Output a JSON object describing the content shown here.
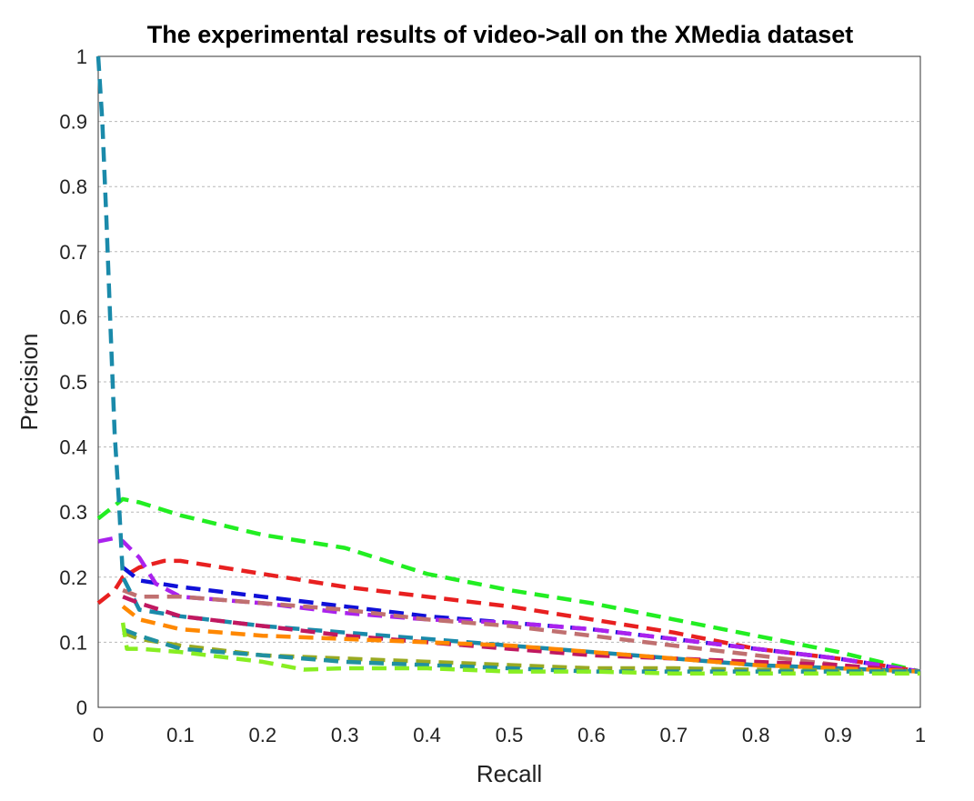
{
  "chart_data": {
    "type": "line",
    "title": "The experimental results of video->all on the XMedia dataset",
    "xlabel": "Recall",
    "ylabel": "Precision",
    "xlim": [
      0,
      1
    ],
    "ylim": [
      0,
      1
    ],
    "xticks": [
      "0",
      "0.1",
      "0.2",
      "0.3",
      "0.4",
      "0.5",
      "0.6",
      "0.7",
      "0.8",
      "0.9",
      "1"
    ],
    "yticks": [
      "0",
      "0.1",
      "0.2",
      "0.3",
      "0.4",
      "0.5",
      "0.6",
      "0.7",
      "0.8",
      "0.9",
      "1"
    ],
    "grid": "horizontal",
    "legend": "none",
    "series": [
      {
        "color": "#22ee22",
        "x": [
          0,
          0.03,
          0.05,
          0.1,
          0.15,
          0.2,
          0.3,
          0.4,
          0.5,
          0.6,
          0.7,
          0.8,
          0.9,
          1
        ],
        "y": [
          0.29,
          0.32,
          0.315,
          0.295,
          0.28,
          0.265,
          0.245,
          0.205,
          0.18,
          0.16,
          0.135,
          0.11,
          0.085,
          0.055
        ]
      },
      {
        "color": "#e82020",
        "x": [
          0,
          0.02,
          0.03,
          0.05,
          0.08,
          0.1,
          0.2,
          0.3,
          0.4,
          0.5,
          0.6,
          0.7,
          0.8,
          0.9,
          1
        ],
        "y": [
          0.16,
          0.18,
          0.2,
          0.215,
          0.225,
          0.225,
          0.205,
          0.185,
          0.17,
          0.155,
          0.135,
          0.115,
          0.09,
          0.075,
          0.055
        ]
      },
      {
        "color": "#1010d8",
        "x": [
          0.03,
          0.05,
          0.1,
          0.2,
          0.3,
          0.4,
          0.5,
          0.6,
          0.7,
          0.8,
          0.9,
          1
        ],
        "y": [
          0.215,
          0.195,
          0.185,
          0.17,
          0.155,
          0.14,
          0.13,
          0.12,
          0.105,
          0.09,
          0.075,
          0.055
        ]
      },
      {
        "color": "#aa22ee",
        "x": [
          0,
          0.02,
          0.03,
          0.05,
          0.07,
          0.1,
          0.2,
          0.3,
          0.4,
          0.5,
          0.6,
          0.7,
          0.8,
          0.9,
          1
        ],
        "y": [
          0.255,
          0.26,
          0.255,
          0.23,
          0.19,
          0.17,
          0.16,
          0.145,
          0.135,
          0.13,
          0.12,
          0.105,
          0.09,
          0.075,
          0.055
        ]
      },
      {
        "color": "#c07070",
        "x": [
          0.03,
          0.05,
          0.1,
          0.2,
          0.3,
          0.4,
          0.5,
          0.6,
          0.7,
          0.8,
          0.9,
          1
        ],
        "y": [
          0.18,
          0.17,
          0.17,
          0.16,
          0.15,
          0.135,
          0.125,
          0.11,
          0.095,
          0.08,
          0.065,
          0.055
        ]
      },
      {
        "color": "#1a8aaa",
        "x": [
          0,
          0.005,
          0.01,
          0.015,
          0.02,
          0.025,
          0.03,
          0.05,
          0.1,
          0.2,
          0.3,
          0.4,
          0.5,
          0.6,
          0.7,
          0.8,
          0.9,
          1
        ],
        "y": [
          1.0,
          0.9,
          0.75,
          0.58,
          0.42,
          0.32,
          0.2,
          0.15,
          0.14,
          0.125,
          0.115,
          0.105,
          0.095,
          0.085,
          0.075,
          0.065,
          0.06,
          0.055
        ]
      },
      {
        "color": "#c01860",
        "x": [
          0.03,
          0.05,
          0.1,
          0.2,
          0.3,
          0.4,
          0.5,
          0.6,
          0.7,
          0.8,
          0.9,
          1
        ],
        "y": [
          0.17,
          0.16,
          0.14,
          0.125,
          0.11,
          0.1,
          0.09,
          0.08,
          0.075,
          0.07,
          0.065,
          0.055
        ]
      },
      {
        "color": "#ff8800",
        "x": [
          0.03,
          0.05,
          0.1,
          0.2,
          0.3,
          0.4,
          0.5,
          0.6,
          0.7,
          0.8,
          0.9,
          1
        ],
        "y": [
          0.155,
          0.135,
          0.12,
          0.11,
          0.105,
          0.1,
          0.095,
          0.085,
          0.075,
          0.065,
          0.06,
          0.055
        ]
      },
      {
        "color": "#99aa22",
        "x": [
          0.03,
          0.05,
          0.1,
          0.2,
          0.3,
          0.4,
          0.5,
          0.6,
          0.7,
          0.8,
          0.9,
          1
        ],
        "y": [
          0.115,
          0.105,
          0.095,
          0.08,
          0.075,
          0.07,
          0.065,
          0.06,
          0.06,
          0.058,
          0.056,
          0.055
        ]
      },
      {
        "color": "#2090a0",
        "x": [
          0.03,
          0.05,
          0.1,
          0.2,
          0.3,
          0.4,
          0.5,
          0.6,
          0.7,
          0.8,
          0.9,
          1
        ],
        "y": [
          0.12,
          0.11,
          0.09,
          0.08,
          0.07,
          0.065,
          0.06,
          0.055,
          0.055,
          0.055,
          0.055,
          0.055
        ]
      },
      {
        "color": "#88ee22",
        "x": [
          0.03,
          0.035,
          0.05,
          0.1,
          0.2,
          0.25,
          0.3,
          0.4,
          0.5,
          0.6,
          0.7,
          0.8,
          0.9,
          1
        ],
        "y": [
          0.13,
          0.09,
          0.09,
          0.085,
          0.07,
          0.058,
          0.06,
          0.06,
          0.055,
          0.055,
          0.052,
          0.052,
          0.052,
          0.052
        ]
      }
    ]
  }
}
